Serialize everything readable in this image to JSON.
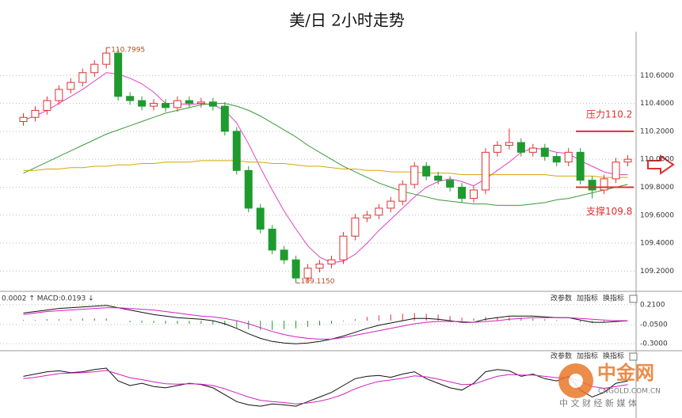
{
  "chart_data": [
    {
      "type": "candlestick",
      "title": "美/日 2小时走势",
      "open": [
        110.27,
        110.3,
        110.35,
        110.42,
        110.5,
        110.55,
        110.62,
        110.68,
        110.76,
        110.45,
        110.42,
        110.38,
        110.4,
        110.37,
        110.42,
        110.4,
        110.41,
        110.38,
        110.2,
        109.92,
        109.65,
        109.5,
        109.35,
        109.28,
        109.15,
        109.22,
        109.25,
        109.28,
        109.45,
        109.58,
        109.6,
        109.65,
        109.7,
        109.82,
        109.95,
        109.88,
        109.85,
        109.8,
        109.72,
        109.78,
        110.05,
        110.1,
        110.12,
        110.05,
        110.08,
        110.02,
        109.98,
        110.05,
        109.85,
        109.78,
        109.86,
        109.98
      ],
      "high": [
        110.33,
        110.38,
        110.45,
        110.53,
        110.58,
        110.65,
        110.71,
        110.7995,
        110.79,
        110.48,
        110.45,
        110.43,
        110.43,
        110.45,
        110.45,
        110.44,
        110.44,
        110.41,
        110.23,
        109.95,
        109.68,
        109.53,
        109.38,
        109.31,
        109.25,
        109.28,
        109.31,
        109.48,
        109.61,
        109.63,
        109.68,
        109.73,
        109.85,
        109.98,
        109.98,
        109.91,
        109.88,
        109.83,
        109.81,
        110.08,
        110.13,
        110.22,
        110.15,
        110.11,
        110.11,
        110.05,
        110.08,
        110.08,
        109.88,
        109.89,
        110.01,
        110.03
      ],
      "low": [
        110.24,
        110.27,
        110.32,
        110.39,
        110.47,
        110.52,
        110.59,
        110.65,
        110.42,
        110.39,
        110.35,
        110.35,
        110.34,
        110.34,
        110.37,
        110.37,
        110.35,
        110.17,
        109.89,
        109.62,
        109.47,
        109.32,
        109.25,
        109.115,
        109.12,
        109.19,
        109.22,
        109.25,
        109.42,
        109.55,
        109.57,
        109.62,
        109.67,
        109.79,
        109.85,
        109.82,
        109.77,
        109.69,
        109.69,
        109.75,
        110.02,
        110.07,
        110.02,
        110.02,
        109.99,
        109.95,
        109.95,
        109.82,
        109.72,
        109.75,
        109.83,
        109.95
      ],
      "close": [
        110.3,
        110.35,
        110.42,
        110.5,
        110.55,
        110.62,
        110.68,
        110.76,
        110.45,
        110.42,
        110.38,
        110.4,
        110.37,
        110.42,
        110.4,
        110.41,
        110.38,
        110.2,
        109.92,
        109.65,
        109.5,
        109.35,
        109.28,
        109.15,
        109.22,
        109.25,
        109.28,
        109.45,
        109.58,
        109.6,
        109.65,
        109.7,
        109.82,
        109.95,
        109.88,
        109.85,
        109.8,
        109.72,
        109.78,
        110.05,
        110.1,
        110.12,
        110.05,
        110.08,
        110.02,
        109.98,
        110.05,
        109.85,
        109.78,
        109.86,
        109.98,
        110.0
      ],
      "up_color": "#e03030",
      "down_color": "#1f9a2e",
      "series": [
        {
          "color": "#e040c8",
          "values": [
            110.28,
            110.31,
            110.35,
            110.4,
            110.45,
            110.5,
            110.56,
            110.62,
            110.61,
            110.58,
            110.54,
            110.48,
            110.4,
            110.4,
            110.39,
            110.4,
            110.39,
            110.35,
            110.26,
            110.11,
            109.94,
            109.78,
            109.63,
            109.5,
            109.38,
            109.3,
            109.26,
            109.27,
            109.32,
            109.4,
            109.49,
            109.57,
            109.65,
            109.73,
            109.8,
            109.84,
            109.86,
            109.84,
            109.81,
            109.86,
            109.92,
            109.98,
            110.05,
            110.08,
            110.07,
            110.05,
            110.04,
            109.99,
            109.95,
            109.91,
            109.89,
            109.89
          ]
        },
        {
          "color": "#3a9a3a",
          "values": [
            109.9,
            109.94,
            109.98,
            110.02,
            110.06,
            110.1,
            110.14,
            110.18,
            110.21,
            110.24,
            110.27,
            110.3,
            110.33,
            110.35,
            110.37,
            110.39,
            110.4,
            110.4,
            110.38,
            110.35,
            110.31,
            110.26,
            110.21,
            110.16,
            110.1,
            110.05,
            110.0,
            109.95,
            109.91,
            109.87,
            109.83,
            109.8,
            109.77,
            109.75,
            109.73,
            109.71,
            109.7,
            109.69,
            109.68,
            109.68,
            109.67,
            109.67,
            109.67,
            109.68,
            109.69,
            109.71,
            109.72,
            109.74,
            109.76,
            109.78,
            109.8,
            109.82
          ]
        },
        {
          "color": "#d4a800",
          "values": [
            109.92,
            109.92,
            109.93,
            109.93,
            109.94,
            109.94,
            109.95,
            109.95,
            109.96,
            109.96,
            109.97,
            109.97,
            109.98,
            109.98,
            109.98,
            109.99,
            109.99,
            109.99,
            109.99,
            109.98,
            109.98,
            109.97,
            109.97,
            109.96,
            109.95,
            109.95,
            109.94,
            109.93,
            109.93,
            109.92,
            109.92,
            109.91,
            109.91,
            109.91,
            109.9,
            109.9,
            109.9,
            109.89,
            109.89,
            109.89,
            109.89,
            109.89,
            109.89,
            109.89,
            109.89,
            109.88,
            109.88,
            109.88,
            109.88,
            109.87,
            109.87,
            109.87
          ]
        }
      ],
      "ylim": [
        109.1,
        110.8
      ],
      "yticks": [
        {
          "value": 109.2,
          "label": "109.2000"
        },
        {
          "value": 109.4,
          "label": "109.4000"
        },
        {
          "value": 109.6,
          "label": "109.6000"
        },
        {
          "value": 109.8,
          "label": "109.8000"
        },
        {
          "value": 110.0,
          "label": "110.0000"
        },
        {
          "value": 110.2,
          "label": "110.2000"
        },
        {
          "value": 110.4,
          "label": "110.4000"
        },
        {
          "value": 110.6,
          "label": "110.6000"
        }
      ],
      "grid": true,
      "annotations": [
        {
          "value": 110.7995,
          "label": "110.7995"
        },
        {
          "value": 109.115,
          "label": "109.1150"
        }
      ],
      "levels": [
        {
          "value": 110.2,
          "label": "压力110.2",
          "color": "#e03030"
        },
        {
          "value": 109.8,
          "label": "支撑109.8",
          "color": "#e03030"
        }
      ]
    },
    {
      "type": "bar",
      "title": "0.0002 ↑ MACD:0.0193 ↓",
      "buttons": [
        "改参数",
        "加指标",
        "换指标"
      ],
      "values": [
        0.01,
        0.01,
        0.02,
        0.02,
        0.02,
        0.03,
        0.03,
        0.03,
        0.0,
        -0.02,
        -0.03,
        -0.03,
        -0.04,
        -0.04,
        -0.04,
        -0.04,
        -0.05,
        -0.06,
        -0.09,
        -0.11,
        -0.12,
        -0.12,
        -0.11,
        -0.1,
        -0.08,
        -0.06,
        -0.04,
        -0.01,
        0.02,
        0.05,
        0.07,
        0.08,
        0.09,
        0.1,
        0.09,
        0.08,
        0.06,
        0.04,
        0.03,
        0.05,
        0.05,
        0.05,
        0.04,
        0.03,
        0.02,
        0.01,
        0.0,
        -0.02,
        -0.03,
        -0.02,
        -0.01,
        0.0
      ],
      "up_color": "#e03030",
      "down_color": "#1f9a2e",
      "series": [
        {
          "color": "#111111",
          "values": [
            0.1,
            0.12,
            0.14,
            0.16,
            0.17,
            0.18,
            0.19,
            0.2,
            0.17,
            0.14,
            0.11,
            0.08,
            0.06,
            0.04,
            0.03,
            0.02,
            0.0,
            -0.04,
            -0.1,
            -0.17,
            -0.23,
            -0.27,
            -0.29,
            -0.3,
            -0.29,
            -0.27,
            -0.24,
            -0.2,
            -0.15,
            -0.1,
            -0.06,
            -0.03,
            0.0,
            0.03,
            0.03,
            0.02,
            0.0,
            -0.02,
            -0.02,
            0.02,
            0.04,
            0.06,
            0.06,
            0.06,
            0.05,
            0.04,
            0.04,
            0.01,
            -0.02,
            -0.02,
            -0.01,
            0.0
          ]
        },
        {
          "color": "#d020c0",
          "values": [
            0.08,
            0.1,
            0.12,
            0.13,
            0.14,
            0.15,
            0.16,
            0.17,
            0.17,
            0.16,
            0.15,
            0.14,
            0.12,
            0.1,
            0.08,
            0.06,
            0.05,
            0.03,
            0.0,
            -0.04,
            -0.09,
            -0.14,
            -0.18,
            -0.21,
            -0.23,
            -0.24,
            -0.24,
            -0.22,
            -0.19,
            -0.16,
            -0.13,
            -0.1,
            -0.07,
            -0.04,
            -0.02,
            -0.01,
            -0.01,
            -0.01,
            -0.02,
            -0.01,
            0.0,
            0.02,
            0.03,
            0.04,
            0.04,
            0.04,
            0.04,
            0.03,
            0.02,
            0.01,
            0.0,
            0.0
          ]
        }
      ],
      "ylim": [
        -0.36,
        0.28
      ],
      "yticks": [
        {
          "value": 0.21,
          "label": "0.2100"
        },
        {
          "value": -0.05,
          "label": "-0.0500"
        },
        {
          "value": -0.3,
          "label": "-0.3000"
        }
      ],
      "grid": true
    },
    {
      "type": "line",
      "buttons": [
        "改参数",
        "加指标",
        "换指标"
      ],
      "series": [
        {
          "color": "#111111",
          "values": [
            70,
            75,
            80,
            82,
            78,
            80,
            85,
            88,
            60,
            50,
            55,
            48,
            45,
            50,
            55,
            52,
            45,
            30,
            15,
            8,
            5,
            10,
            8,
            5,
            15,
            25,
            35,
            50,
            65,
            70,
            72,
            68,
            75,
            80,
            65,
            55,
            45,
            40,
            55,
            80,
            85,
            82,
            70,
            75,
            65,
            60,
            70,
            40,
            25,
            35,
            55,
            60
          ]
        },
        {
          "color": "#d020c0",
          "values": [
            65,
            68,
            72,
            76,
            77,
            78,
            80,
            83,
            75,
            67,
            63,
            58,
            54,
            53,
            54,
            53,
            50,
            43,
            34,
            25,
            18,
            15,
            13,
            10,
            12,
            16,
            22,
            31,
            43,
            52,
            59,
            62,
            66,
            71,
            69,
            64,
            58,
            52,
            53,
            62,
            70,
            74,
            73,
            73,
            70,
            67,
            68,
            59,
            48,
            44,
            48,
            52
          ]
        }
      ],
      "ylim": [
        0,
        100
      ]
    }
  ],
  "watermark": {
    "name": "中金网",
    "domain": "CNGOLD.COM.CN",
    "slogan": "中 文 财 经 新 媒 体"
  }
}
